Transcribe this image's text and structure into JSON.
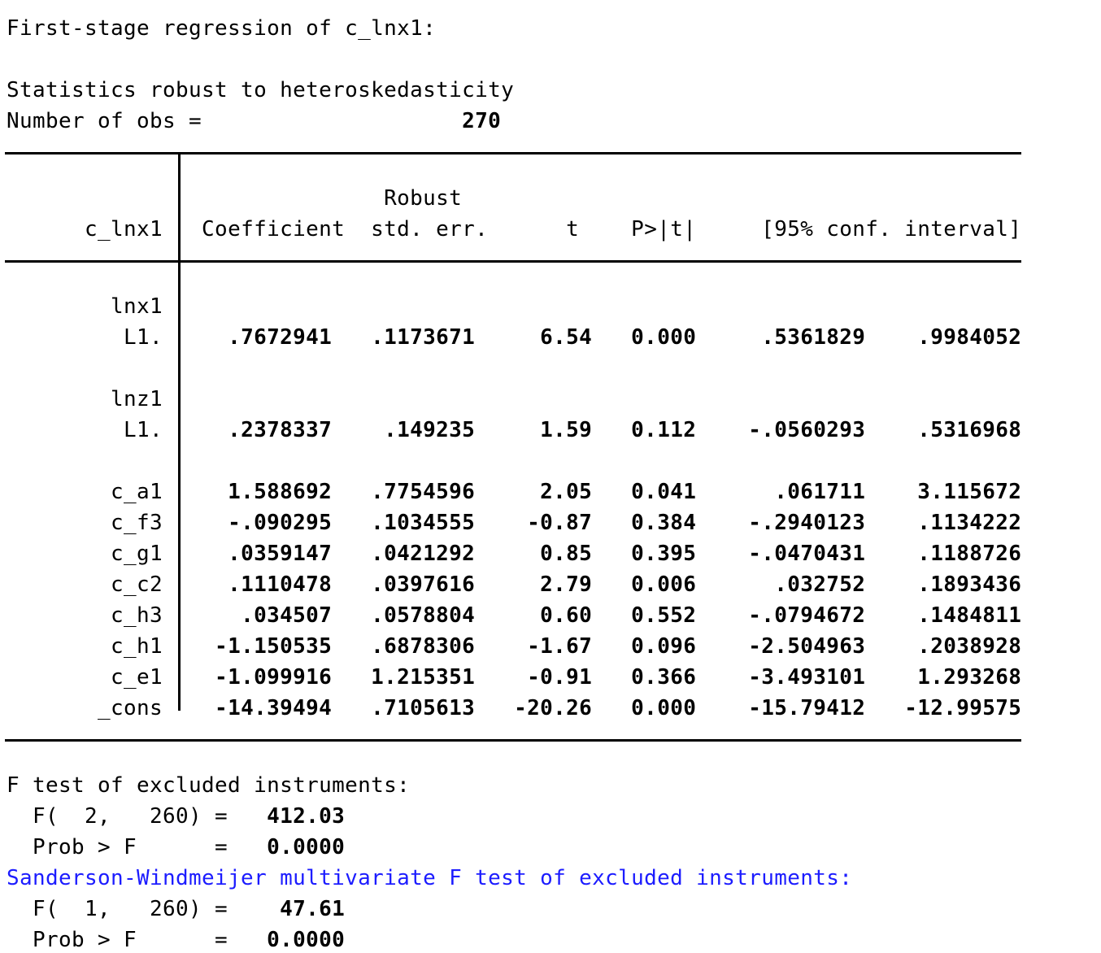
{
  "header": {
    "title_line": "First-stage regression of c_lnx1:",
    "robust_note": "Statistics robust to heteroskedasticity",
    "obs_label": "Number of obs =",
    "obs_value": "270"
  },
  "table": {
    "depvar": "c_lnx1",
    "col_header_top": "Robust",
    "columns": [
      "Coefficient",
      "std. err.",
      "t",
      "P>|t|",
      "[95% conf. interval]"
    ],
    "rows": [
      {
        "type": "section",
        "label": "lnx1"
      },
      {
        "type": "data",
        "label": "L1.",
        "coef": ".7672941",
        "se": ".1173671",
        "t": "6.54",
        "p": "0.000",
        "ci_lo": ".5361829",
        "ci_hi": ".9984052"
      },
      {
        "type": "spacer",
        "label": ""
      },
      {
        "type": "section",
        "label": "lnz1"
      },
      {
        "type": "data",
        "label": "L1.",
        "coef": ".2378337",
        "se": ".149235",
        "t": "1.59",
        "p": "0.112",
        "ci_lo": "-.0560293",
        "ci_hi": ".5316968"
      },
      {
        "type": "spacer",
        "label": ""
      },
      {
        "type": "data",
        "label": "c_a1",
        "coef": "1.588692",
        "se": ".7754596",
        "t": "2.05",
        "p": "0.041",
        "ci_lo": ".061711",
        "ci_hi": "3.115672"
      },
      {
        "type": "data",
        "label": "c_f3",
        "coef": "-.090295",
        "se": ".1034555",
        "t": "-0.87",
        "p": "0.384",
        "ci_lo": "-.2940123",
        "ci_hi": ".1134222"
      },
      {
        "type": "data",
        "label": "c_g1",
        "coef": ".0359147",
        "se": ".0421292",
        "t": "0.85",
        "p": "0.395",
        "ci_lo": "-.0470431",
        "ci_hi": ".1188726"
      },
      {
        "type": "data",
        "label": "c_c2",
        "coef": ".1110478",
        "se": ".0397616",
        "t": "2.79",
        "p": "0.006",
        "ci_lo": ".032752",
        "ci_hi": ".1893436"
      },
      {
        "type": "data",
        "label": "c_h3",
        "coef": ".034507",
        "se": ".0578804",
        "t": "0.60",
        "p": "0.552",
        "ci_lo": "-.0794672",
        "ci_hi": ".1484811"
      },
      {
        "type": "data",
        "label": "c_h1",
        "coef": "-1.150535",
        "se": ".6878306",
        "t": "-1.67",
        "p": "0.096",
        "ci_lo": "-2.504963",
        "ci_hi": ".2038928"
      },
      {
        "type": "data",
        "label": "c_e1",
        "coef": "-1.099916",
        "se": "1.215351",
        "t": "-0.91",
        "p": "0.366",
        "ci_lo": "-3.493101",
        "ci_hi": "1.293268"
      },
      {
        "type": "data",
        "label": "_cons",
        "coef": "-14.39494",
        "se": ".7105613",
        "t": "-20.26",
        "p": "0.000",
        "ci_lo": "-15.79412",
        "ci_hi": "-12.99575"
      }
    ]
  },
  "f_test": {
    "heading": "F test of excluded instruments:",
    "f_label": "  F(  2,   260) =",
    "f_value": "412.03",
    "p_label": "  Prob > F      =",
    "p_value": "0.0000"
  },
  "sw_test": {
    "heading": "Sanderson-Windmeijer multivariate F test of excluded instruments:",
    "f_value": "47.61",
    "f_label": "  F(  1,   260) =",
    "p_label": "  Prob > F      =",
    "p_value": "0.0000"
  },
  "colors": {
    "text": "#000000",
    "result_blue": "#1c1cff",
    "background": "#ffffff"
  }
}
